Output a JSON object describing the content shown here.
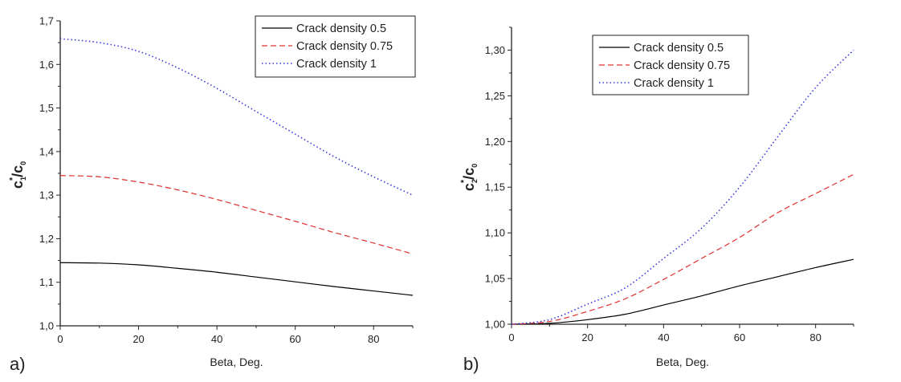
{
  "chart_data": [
    {
      "type": "line",
      "panel_label": "a)",
      "xlabel": "Beta, Deg.",
      "ylabel_parts": {
        "base": "c",
        "sub": "1",
        "sup": "*",
        "rest": "/c",
        "sub2": "0"
      },
      "xlim": [
        0,
        90
      ],
      "ylim": [
        1.0,
        1.7
      ],
      "xticks": [
        0,
        20,
        40,
        60,
        80
      ],
      "xtick_labels": [
        "0",
        "20",
        "40",
        "60",
        "80"
      ],
      "yticks": [
        1.0,
        1.1,
        1.2,
        1.3,
        1.4,
        1.5,
        1.6,
        1.7
      ],
      "ytick_labels": [
        "1,0",
        "1,1",
        "1,2",
        "1,3",
        "1,4",
        "1,5",
        "1,6",
        "1,7"
      ],
      "grid": false,
      "legend_position": "top-right",
      "x": [
        0,
        10,
        20,
        30,
        40,
        50,
        60,
        70,
        80,
        90
      ],
      "series": [
        {
          "name": "Crack density 0.5",
          "color": "#000000",
          "style": "solid",
          "values": [
            1.145,
            1.144,
            1.14,
            1.132,
            1.123,
            1.112,
            1.101,
            1.09,
            1.08,
            1.07
          ]
        },
        {
          "name": "Crack density 0.75",
          "color": "#e03030",
          "style": "dashed",
          "values": [
            1.345,
            1.342,
            1.33,
            1.312,
            1.29,
            1.265,
            1.24,
            1.214,
            1.19,
            1.165
          ]
        },
        {
          "name": "Crack density 1",
          "color": "#3a3adf",
          "style": "dotted",
          "values": [
            1.659,
            1.65,
            1.63,
            1.592,
            1.545,
            1.492,
            1.44,
            1.388,
            1.342,
            1.3
          ]
        }
      ]
    },
    {
      "type": "line",
      "panel_label": "b)",
      "xlabel": "Beta, Deg.",
      "ylabel_parts": {
        "base": "c",
        "sub": "2",
        "sup": "*",
        "rest": "/c",
        "sub2": "0"
      },
      "xlim": [
        0,
        90
      ],
      "ylim": [
        1.0,
        1.325
      ],
      "xticks": [
        0,
        20,
        40,
        60,
        80
      ],
      "xtick_labels": [
        "0",
        "20",
        "40",
        "60",
        "80"
      ],
      "yticks": [
        1.0,
        1.05,
        1.1,
        1.15,
        1.2,
        1.25,
        1.3
      ],
      "ytick_labels": [
        "1,00",
        "1,05",
        "1,10",
        "1,15",
        "1,20",
        "1,25",
        "1,30"
      ],
      "grid": false,
      "legend_position": "top-center",
      "x": [
        0,
        10,
        20,
        30,
        40,
        50,
        60,
        70,
        80,
        90
      ],
      "series": [
        {
          "name": "Crack density 0.5",
          "color": "#000000",
          "style": "solid",
          "values": [
            1.0,
            1.001,
            1.005,
            1.011,
            1.021,
            1.031,
            1.042,
            1.052,
            1.062,
            1.071
          ]
        },
        {
          "name": "Crack density 0.75",
          "color": "#e03030",
          "style": "dashed",
          "values": [
            1.0,
            1.003,
            1.014,
            1.028,
            1.049,
            1.072,
            1.095,
            1.122,
            1.143,
            1.164
          ]
        },
        {
          "name": "Crack density 1",
          "color": "#3a3adf",
          "style": "dotted",
          "values": [
            1.0,
            1.005,
            1.022,
            1.04,
            1.072,
            1.105,
            1.15,
            1.205,
            1.259,
            1.3
          ]
        }
      ]
    }
  ]
}
